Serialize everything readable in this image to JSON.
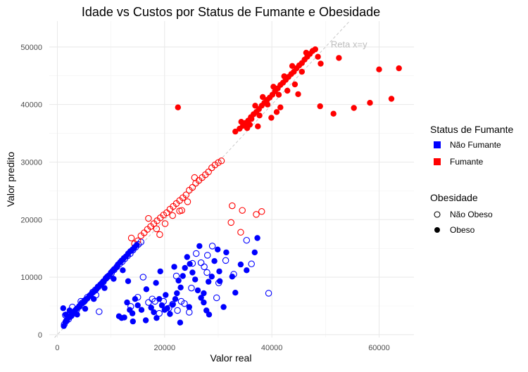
{
  "chart_data": {
    "type": "scatter",
    "title": "Idade vs Custos por Status de Fumante e Obesidade",
    "xlabel": "Valor real",
    "ylabel": "Valor predito",
    "xlim": [
      -1500,
      66500
    ],
    "ylim": [
      -500,
      54500
    ],
    "x_ticks": [
      0,
      20000,
      40000,
      60000
    ],
    "y_ticks": [
      0,
      10000,
      20000,
      30000,
      40000,
      50000
    ],
    "grid": true,
    "reference_line": {
      "label": "Reta x=y",
      "slope": 1,
      "intercept": 0,
      "style": "dashed",
      "color": "#c8c8c8"
    },
    "legend_position": "right",
    "legends": [
      {
        "title": "Status de Fumante",
        "kind": "color",
        "entries": [
          {
            "label": "Não Fumante",
            "color": "#0000ff"
          },
          {
            "label": "Fumante",
            "color": "#ff0000"
          }
        ]
      },
      {
        "title": "Obesidade",
        "kind": "shape",
        "entries": [
          {
            "label": "Não Obeso",
            "fill": "hollow"
          },
          {
            "label": "Obeso",
            "fill": "solid"
          }
        ]
      }
    ],
    "series": [
      {
        "smoker": "Não Fumante",
        "obese": "Obeso",
        "color": "#0000ff",
        "fill": "solid",
        "points": [
          [
            1200,
            1500
          ],
          [
            1500,
            2200
          ],
          [
            1800,
            2600
          ],
          [
            2000,
            2900
          ],
          [
            2200,
            3000
          ],
          [
            2500,
            3200
          ],
          [
            2800,
            3600
          ],
          [
            3000,
            3800
          ],
          [
            3300,
            4200
          ],
          [
            3600,
            4500
          ],
          [
            4000,
            4800
          ],
          [
            4300,
            5200
          ],
          [
            4600,
            5400
          ],
          [
            5000,
            5700
          ],
          [
            5300,
            6100
          ],
          [
            5600,
            6300
          ],
          [
            6000,
            6700
          ],
          [
            6300,
            7000
          ],
          [
            6600,
            7300
          ],
          [
            7000,
            7600
          ],
          [
            7300,
            7900
          ],
          [
            7600,
            8300
          ],
          [
            8000,
            8700
          ],
          [
            8300,
            9000
          ],
          [
            8600,
            9300
          ],
          [
            9000,
            9700
          ],
          [
            9300,
            10100
          ],
          [
            9600,
            10300
          ],
          [
            10000,
            10800
          ],
          [
            10300,
            11100
          ],
          [
            10600,
            11400
          ],
          [
            11000,
            11700
          ],
          [
            11300,
            12200
          ],
          [
            11700,
            12600
          ],
          [
            12000,
            12900
          ],
          [
            12400,
            13300
          ],
          [
            12800,
            13600
          ],
          [
            13200,
            14100
          ],
          [
            13600,
            14500
          ],
          [
            14000,
            14800
          ],
          [
            14400,
            15200
          ],
          [
            14800,
            15600
          ],
          [
            1100,
            4600
          ],
          [
            1600,
            3500
          ],
          [
            2300,
            4200
          ],
          [
            3700,
            3500
          ],
          [
            5200,
            4500
          ],
          [
            6800,
            6200
          ],
          [
            8800,
            8100
          ],
          [
            10500,
            9700
          ],
          [
            12200,
            11200
          ],
          [
            11500,
            3200
          ],
          [
            12000,
            2900
          ],
          [
            12500,
            3000
          ],
          [
            13000,
            5600
          ],
          [
            13500,
            4300
          ],
          [
            14000,
            3700
          ],
          [
            14500,
            6200
          ],
          [
            15000,
            5100
          ],
          [
            15700,
            4300
          ],
          [
            16500,
            2500
          ],
          [
            17500,
            4700
          ],
          [
            18000,
            3900
          ],
          [
            18500,
            2900
          ],
          [
            19000,
            6200
          ],
          [
            19500,
            5100
          ],
          [
            20000,
            4300
          ],
          [
            20500,
            4600
          ],
          [
            21000,
            3600
          ],
          [
            21500,
            5200
          ],
          [
            22000,
            6200
          ],
          [
            22300,
            7200
          ],
          [
            22600,
            9400
          ],
          [
            23000,
            8200
          ],
          [
            23400,
            10200
          ],
          [
            23800,
            11600
          ],
          [
            24200,
            13500
          ],
          [
            24700,
            12300
          ],
          [
            25200,
            10800
          ],
          [
            25700,
            9600
          ],
          [
            26200,
            7700
          ],
          [
            26800,
            6400
          ],
          [
            27300,
            5600
          ],
          [
            27800,
            4200
          ],
          [
            28300,
            3500
          ],
          [
            28800,
            10100
          ],
          [
            29300,
            12800
          ],
          [
            29900,
            14800
          ],
          [
            30300,
            9300
          ],
          [
            31500,
            14300
          ],
          [
            32600,
            10100
          ],
          [
            34200,
            12200
          ],
          [
            35300,
            11200
          ],
          [
            36800,
            14300
          ],
          [
            37300,
            16800
          ],
          [
            22900,
            2100
          ],
          [
            20200,
            6900
          ],
          [
            19200,
            11000
          ],
          [
            21800,
            11800
          ],
          [
            24600,
            4800
          ],
          [
            26500,
            15400
          ],
          [
            27300,
            7200
          ],
          [
            28200,
            9200
          ],
          [
            14100,
            2300
          ],
          [
            13200,
            9300
          ],
          [
            16600,
            7900
          ],
          [
            18400,
            9000
          ],
          [
            31000,
            4800
          ],
          [
            33200,
            7300
          ],
          [
            30200,
            11000
          ]
        ]
      },
      {
        "smoker": "Não Fumante",
        "obese": "Não Obeso",
        "color": "#0000ff",
        "fill": "hollow",
        "points": [
          [
            1300,
            1800
          ],
          [
            1700,
            2400
          ],
          [
            2100,
            2700
          ],
          [
            2600,
            3300
          ],
          [
            3100,
            3900
          ],
          [
            3600,
            4300
          ],
          [
            4100,
            4900
          ],
          [
            4600,
            5500
          ],
          [
            5100,
            5900
          ],
          [
            5600,
            6500
          ],
          [
            6100,
            6800
          ],
          [
            6600,
            7400
          ],
          [
            7100,
            7800
          ],
          [
            7600,
            8300
          ],
          [
            8100,
            8700
          ],
          [
            8600,
            9200
          ],
          [
            9100,
            9800
          ],
          [
            9600,
            10200
          ],
          [
            10100,
            10700
          ],
          [
            10600,
            11300
          ],
          [
            11100,
            11800
          ],
          [
            11600,
            12300
          ],
          [
            12100,
            12700
          ],
          [
            12600,
            13200
          ],
          [
            13100,
            13700
          ],
          [
            13600,
            14100
          ],
          [
            14100,
            14700
          ],
          [
            14600,
            15200
          ],
          [
            15100,
            15700
          ],
          [
            15600,
            16100
          ],
          [
            1500,
            3400
          ],
          [
            2800,
            4800
          ],
          [
            4400,
            5800
          ],
          [
            7200,
            6900
          ],
          [
            7800,
            4000
          ],
          [
            13700,
            4900
          ],
          [
            15000,
            6500
          ],
          [
            16000,
            10000
          ],
          [
            17000,
            5600
          ],
          [
            17700,
            6200
          ],
          [
            18200,
            5800
          ],
          [
            19000,
            3700
          ],
          [
            19800,
            5800
          ],
          [
            20800,
            4600
          ],
          [
            21500,
            5300
          ],
          [
            22400,
            4200
          ],
          [
            23100,
            5800
          ],
          [
            23700,
            5400
          ],
          [
            24600,
            3900
          ],
          [
            25200,
            12400
          ],
          [
            25900,
            14100
          ],
          [
            26800,
            12500
          ],
          [
            27400,
            11800
          ],
          [
            28000,
            13800
          ],
          [
            28900,
            15400
          ],
          [
            29700,
            6400
          ],
          [
            30100,
            9000
          ],
          [
            31400,
            12900
          ],
          [
            32900,
            10500
          ],
          [
            35300,
            16400
          ],
          [
            36200,
            12300
          ],
          [
            39400,
            7200
          ],
          [
            25000,
            8100
          ],
          [
            27900,
            10800
          ],
          [
            22200,
            10200
          ]
        ]
      },
      {
        "smoker": "Fumante",
        "obese": "Obeso",
        "color": "#ff0000",
        "fill": "solid",
        "points": [
          [
            33200,
            35300
          ],
          [
            34000,
            35800
          ],
          [
            34600,
            36300
          ],
          [
            35100,
            36800
          ],
          [
            35600,
            37200
          ],
          [
            36100,
            37800
          ],
          [
            36600,
            38300
          ],
          [
            37100,
            38700
          ],
          [
            37600,
            39200
          ],
          [
            38100,
            39800
          ],
          [
            38600,
            40300
          ],
          [
            39100,
            40800
          ],
          [
            39600,
            41200
          ],
          [
            40100,
            41700
          ],
          [
            40600,
            42300
          ],
          [
            41100,
            42800
          ],
          [
            41600,
            43400
          ],
          [
            42100,
            43800
          ],
          [
            42600,
            44300
          ],
          [
            43100,
            44800
          ],
          [
            43600,
            45300
          ],
          [
            44100,
            45700
          ],
          [
            44600,
            46300
          ],
          [
            45100,
            46800
          ],
          [
            45600,
            47200
          ],
          [
            46100,
            47800
          ],
          [
            46600,
            48300
          ],
          [
            47100,
            48800
          ],
          [
            47600,
            49300
          ],
          [
            48100,
            49600
          ],
          [
            34300,
            37000
          ],
          [
            35400,
            35900
          ],
          [
            36200,
            37500
          ],
          [
            36900,
            39800
          ],
          [
            37700,
            38100
          ],
          [
            38300,
            41300
          ],
          [
            39200,
            40000
          ],
          [
            40300,
            43100
          ],
          [
            41300,
            41700
          ],
          [
            42300,
            44900
          ],
          [
            42900,
            42400
          ],
          [
            43800,
            46700
          ],
          [
            44300,
            43500
          ],
          [
            45600,
            45700
          ],
          [
            46400,
            49000
          ],
          [
            48600,
            48300
          ],
          [
            49100,
            47100
          ],
          [
            44900,
            41800
          ],
          [
            39900,
            37700
          ],
          [
            41600,
            39500
          ],
          [
            52500,
            48100
          ],
          [
            55300,
            39400
          ],
          [
            58300,
            40300
          ],
          [
            60000,
            46100
          ],
          [
            62300,
            41000
          ],
          [
            63700,
            46300
          ],
          [
            51500,
            38400
          ],
          [
            49000,
            39700
          ],
          [
            22500,
            39500
          ],
          [
            35900,
            36500
          ],
          [
            37400,
            36200
          ],
          [
            40900,
            38700
          ]
        ]
      },
      {
        "smoker": "Fumante",
        "obese": "Não Obeso",
        "color": "#ff0000",
        "fill": "hollow",
        "points": [
          [
            13800,
            16800
          ],
          [
            14400,
            15800
          ],
          [
            15000,
            16300
          ],
          [
            15600,
            17200
          ],
          [
            16200,
            17700
          ],
          [
            16800,
            18300
          ],
          [
            17400,
            18800
          ],
          [
            18000,
            19300
          ],
          [
            18600,
            19800
          ],
          [
            19200,
            20300
          ],
          [
            19800,
            20800
          ],
          [
            20400,
            21200
          ],
          [
            21000,
            21800
          ],
          [
            21600,
            22300
          ],
          [
            22200,
            22800
          ],
          [
            22800,
            23300
          ],
          [
            23400,
            23800
          ],
          [
            24000,
            24300
          ],
          [
            24600,
            25100
          ],
          [
            25200,
            25600
          ],
          [
            25800,
            26300
          ],
          [
            26400,
            26800
          ],
          [
            27000,
            27300
          ],
          [
            27600,
            27800
          ],
          [
            28200,
            28300
          ],
          [
            28800,
            29000
          ],
          [
            29400,
            29500
          ],
          [
            30000,
            29900
          ],
          [
            30600,
            30200
          ],
          [
            17000,
            20200
          ],
          [
            18500,
            18400
          ],
          [
            20100,
            19300
          ],
          [
            21500,
            20700
          ],
          [
            22800,
            21500
          ],
          [
            24300,
            23100
          ],
          [
            25600,
            27300
          ],
          [
            23200,
            21600
          ],
          [
            19100,
            17400
          ],
          [
            32400,
            19500
          ],
          [
            32600,
            22400
          ],
          [
            34200,
            17800
          ],
          [
            34500,
            21600
          ],
          [
            37100,
            20900
          ],
          [
            38100,
            21400
          ]
        ]
      }
    ]
  }
}
